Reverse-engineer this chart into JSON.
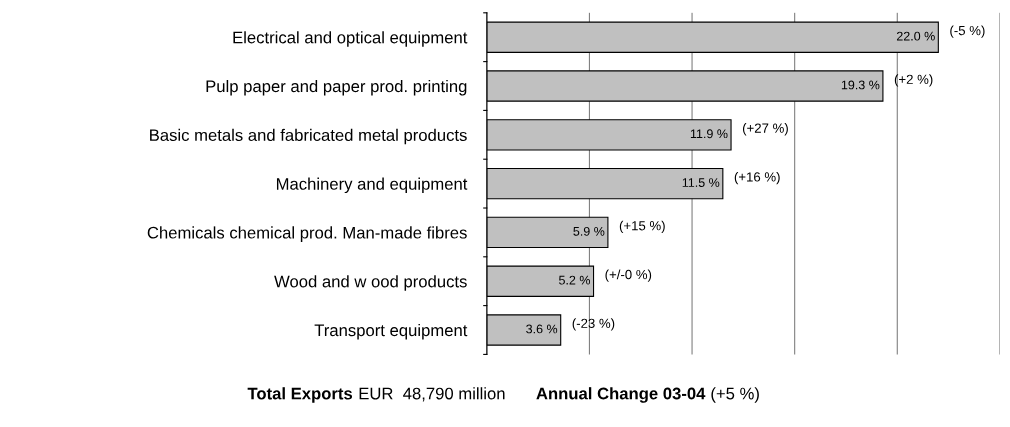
{
  "chart_data": {
    "type": "bar",
    "orientation": "horizontal",
    "categories": [
      "Electrical and optical equipment",
      "Pulp paper and paper prod. printing",
      "Basic metals and fabricated metal products",
      "Machinery and equipment",
      "Chemicals chemical prod. Man-made fibres",
      "Wood and w ood products",
      "Transport equipment"
    ],
    "values": [
      22.0,
      19.3,
      11.9,
      11.5,
      5.9,
      5.2,
      3.6
    ],
    "value_labels": [
      "22.0 %",
      "19.3 %",
      "11.9 %",
      "11.5 %",
      "5.9 %",
      "5.2 %",
      "3.6 %"
    ],
    "color": "#c0c0c0",
    "xlim": [
      0,
      25
    ],
    "xticks": [
      {
        "value": 0,
        "label": null
      },
      {
        "value": 5,
        "label": null
      },
      {
        "value": 10,
        "label": null
      },
      {
        "value": 15,
        "label": null
      },
      {
        "value": 20,
        "label": null
      },
      {
        "value": 25,
        "label": null
      }
    ],
    "tick_labels": "y",
    "grid": "x",
    "annotations": [
      {
        "text": "(-5 %)",
        "x": 22.0,
        "y": "Electrical and optical equipment"
      },
      {
        "text": "(+2 %)",
        "x": 19.3,
        "y": "Pulp paper and paper prod. printing"
      },
      {
        "text": "(+27 %)",
        "x": 11.9,
        "y": "Basic metals and fabricated metal products"
      },
      {
        "text": "(+16 %)",
        "x": 11.5,
        "y": "Machinery and equipment"
      },
      {
        "text": "(+15 %)",
        "x": 5.9,
        "y": "Chemicals chemical prod. Man-made fibres"
      },
      {
        "text": "(+/-0 %)",
        "x": 5.2,
        "y": "Wood and w ood products"
      },
      {
        "text": "(-23 %)",
        "x": 3.6,
        "y": "Transport equipment"
      },
      "Total Exports",
      "EUR  48,790 million",
      "Annual Change 03-04",
      "(+5 %)"
    ]
  }
}
